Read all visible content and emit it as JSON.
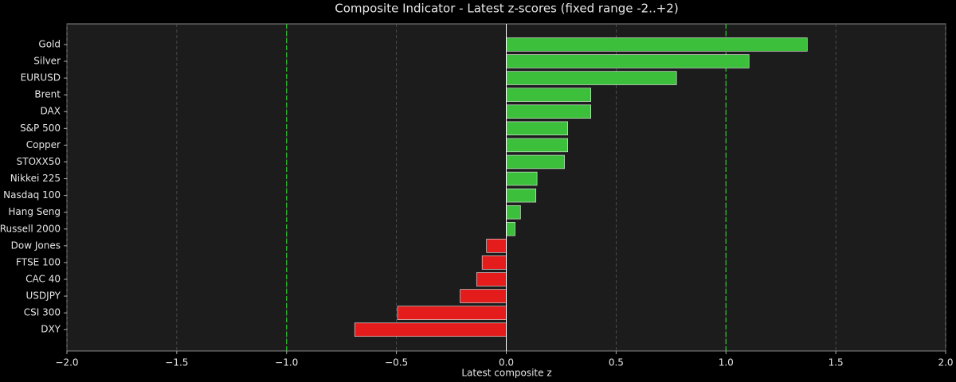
{
  "chart_data": {
    "type": "barh",
    "title": "Composite Indicator - Latest z-scores (fixed range -2..+2)",
    "x_label": "Latest composite z",
    "categories": [
      "Gold",
      "Silver",
      "EURUSD",
      "Brent",
      "DAX",
      "S&P 500",
      "Copper",
      "STOXX50",
      "Nikkei 225",
      "Nasdaq 100",
      "Hang Seng",
      "Russell 2000",
      "Dow Jones",
      "FTSE 100",
      "CAC 40",
      "USDJPY",
      "CSI 300",
      "DXY"
    ],
    "values": [
      1.37,
      1.105,
      0.775,
      0.385,
      0.385,
      0.28,
      0.28,
      0.265,
      0.14,
      0.135,
      0.065,
      0.04,
      -0.09,
      -0.11,
      -0.135,
      -0.21,
      -0.495,
      -0.69
    ],
    "positive_color": "#3cc03c",
    "negative_color": "#e51c1c",
    "xlim": [
      -2,
      2
    ],
    "xticks": [
      {
        "value": -2,
        "label": "−2.0"
      },
      {
        "value": -1.5,
        "label": "−1.5"
      },
      {
        "value": -1,
        "label": "−1.0"
      },
      {
        "value": -0.5,
        "label": "−0.5"
      },
      {
        "value": 0,
        "label": "0.0"
      },
      0.5,
      {
        "value": 1,
        "label": "1.0"
      },
      1.5,
      {
        "value": 2,
        "label": "2.0"
      }
    ],
    "grid": true,
    "reference_lines": [
      -1,
      1
    ],
    "reference_color": "#2ecc2e"
  }
}
